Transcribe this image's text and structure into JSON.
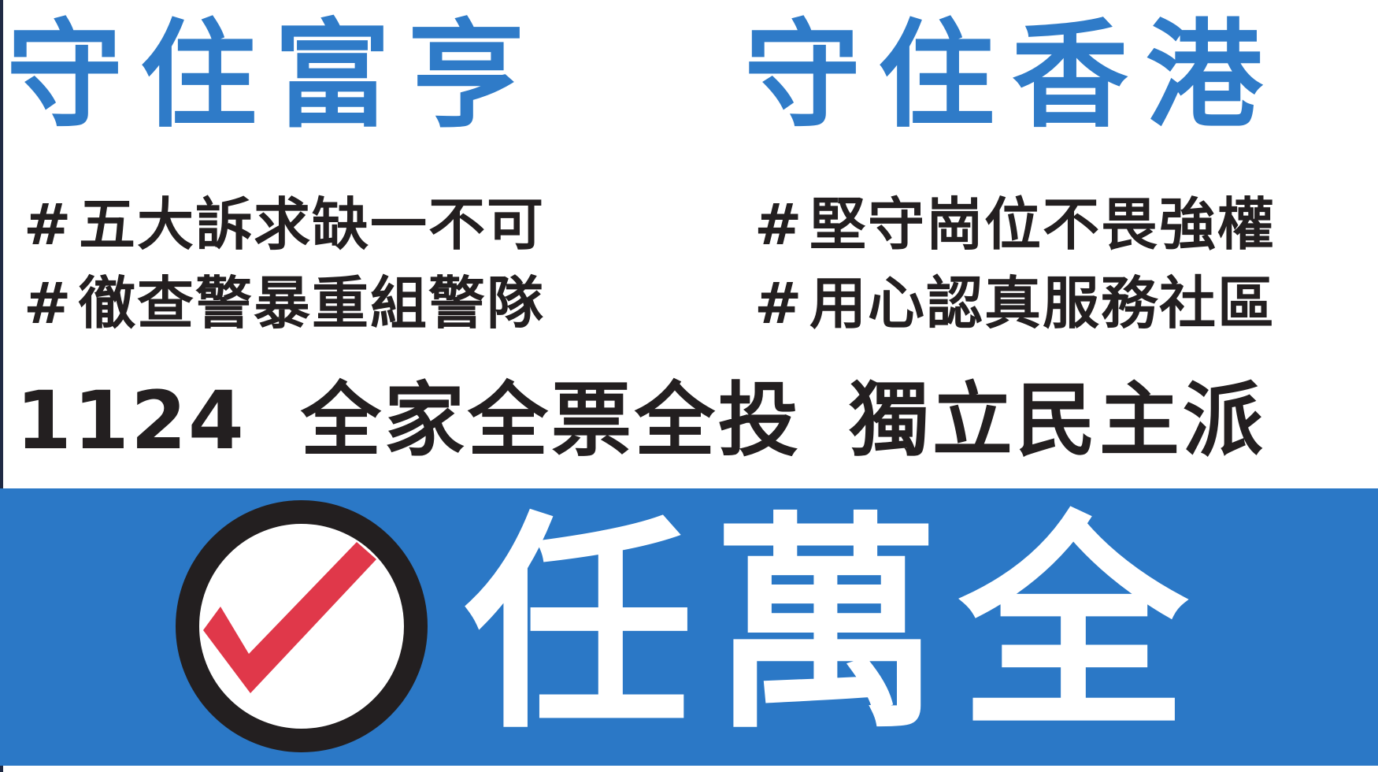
{
  "colors": {
    "blue": "#2f7bc8",
    "band_blue": "#2b78c6",
    "black": "#231f20",
    "red_tick": "#e0384a",
    "white": "#ffffff"
  },
  "slogans": {
    "left": "守住富亨",
    "right": "守住香港"
  },
  "hashtags": {
    "left": [
      {
        "hash": "#",
        "text": "五大訴求缺一不可"
      },
      {
        "hash": "#",
        "text": "徹查警暴重組警隊"
      }
    ],
    "right": [
      {
        "hash": "#",
        "text": "堅守崗位不畏強權"
      },
      {
        "hash": "#",
        "text": "用心認真服務社區"
      }
    ]
  },
  "election": {
    "date": "1124",
    "phrase": "全家全票全投",
    "camp": "獨立民主派"
  },
  "candidate": {
    "name": "任萬全",
    "mark_icon": "check-in-circle-icon"
  }
}
